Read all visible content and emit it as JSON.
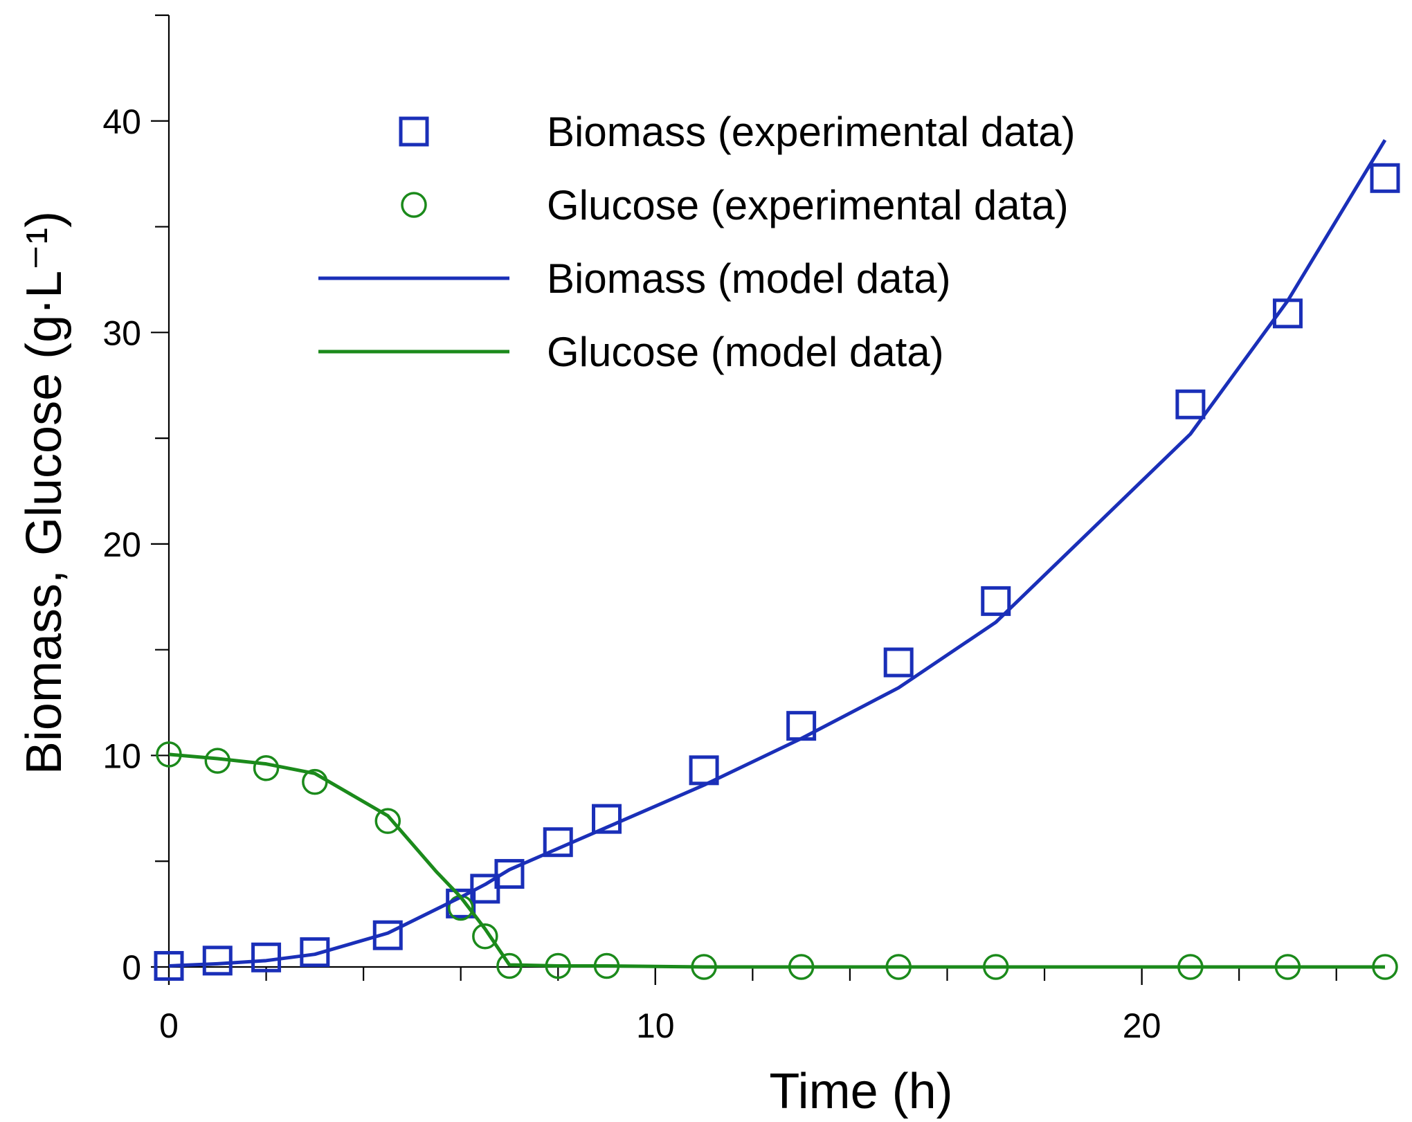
{
  "chart_data": {
    "type": "line+scatter",
    "xlabel": "Time (h)",
    "ylabel": "Biomass, Glucose (g·L⁻¹)",
    "xlim": [
      0,
      25
    ],
    "ylim": [
      0,
      45
    ],
    "x_major_ticks": [
      0,
      10,
      20
    ],
    "x_minor_step": 2,
    "y_major_ticks": [
      0,
      10,
      20,
      30,
      40
    ],
    "y_minor_step": 5,
    "legend_position": "top-center",
    "colors": {
      "biomass": "#1a2fb8",
      "glucose": "#1b8a1b"
    },
    "series": [
      {
        "name": "Biomass (experimental data)",
        "kind": "scatter",
        "marker": "square",
        "color": "#1a2fb8",
        "x": [
          0,
          1,
          2,
          3,
          4.5,
          6,
          6.5,
          7,
          8,
          9,
          11,
          13,
          15,
          17,
          21,
          23,
          25
        ],
        "y": [
          0.05,
          0.3,
          0.45,
          0.7,
          1.5,
          3.0,
          3.7,
          4.4,
          5.9,
          7.0,
          9.3,
          11.4,
          14.4,
          17.3,
          26.6,
          30.9,
          37.3
        ]
      },
      {
        "name": "Glucose (experimental data)",
        "kind": "scatter",
        "marker": "circle",
        "color": "#1b8a1b",
        "x": [
          0,
          1,
          2,
          3,
          4.5,
          6,
          6.5,
          7,
          8,
          9,
          11,
          13,
          15,
          17,
          21,
          23,
          25
        ],
        "y": [
          10.05,
          9.75,
          9.4,
          8.75,
          6.9,
          2.8,
          1.45,
          0.05,
          0.05,
          0.05,
          0.0,
          0.0,
          0.0,
          0.0,
          0.0,
          0.0,
          0.0
        ]
      },
      {
        "name": "Biomass (model data)",
        "kind": "line",
        "color": "#1a2fb8",
        "x": [
          0,
          1,
          2,
          3,
          4.5,
          6,
          6.5,
          7,
          8,
          9,
          11,
          13,
          15,
          17,
          21,
          23,
          25
        ],
        "y": [
          0.05,
          0.15,
          0.3,
          0.6,
          1.6,
          3.3,
          3.9,
          4.6,
          5.6,
          6.6,
          8.6,
          10.8,
          13.2,
          16.3,
          25.2,
          31.5,
          39.1
        ]
      },
      {
        "name": "Glucose (model data)",
        "kind": "line",
        "color": "#1b8a1b",
        "x": [
          0,
          1,
          2,
          3,
          4.5,
          5.5,
          6,
          6.5,
          7,
          8,
          9,
          11,
          13,
          15,
          17,
          21,
          23,
          25
        ],
        "y": [
          10.05,
          9.85,
          9.6,
          9.15,
          7.15,
          4.5,
          3.3,
          1.8,
          0.1,
          0.05,
          0.05,
          0.0,
          0.0,
          0.0,
          0.0,
          0.0,
          0.0,
          0.0
        ]
      }
    ]
  }
}
